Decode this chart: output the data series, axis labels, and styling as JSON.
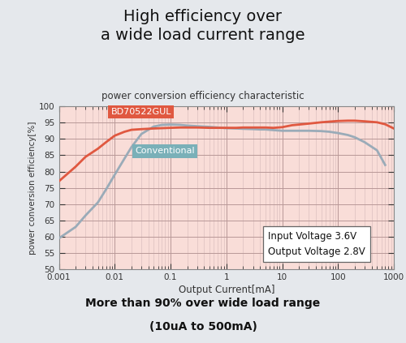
{
  "title": "High efficiency over\na wide load current range",
  "subtitle": "power conversion efficiency characteristic",
  "xlabel": "Output Current[mA]",
  "ylabel": "power conversion efficiency[%]",
  "footer_line1": "More than 90% over wide load range",
  "footer_line2": "(10uA to 500mA)",
  "xlim": [
    0.001,
    1000
  ],
  "ylim": [
    50,
    100
  ],
  "yticks": [
    50,
    55,
    60,
    65,
    70,
    75,
    80,
    85,
    90,
    95,
    100
  ],
  "background_color": "#e5e8ec",
  "plot_bg_color": "#f9ddd8",
  "grid_major_color": "#b89898",
  "grid_minor_color": "#d4b8b8",
  "bd_color": "#e05840",
  "conv_color": "#9aabb8",
  "bd_label": "BD70522GUL",
  "bd_label_bg": "#e05840",
  "bd_label_fg": "#ffffff",
  "conv_label": "Conventional",
  "conv_label_bg": "#7ab0b8",
  "conv_label_fg": "#ffffff",
  "annotation_text": "Input Voltage 3.6V\nOutput Voltage 2.8V",
  "bd_x": [
    0.001,
    0.002,
    0.003,
    0.005,
    0.007,
    0.01,
    0.015,
    0.02,
    0.03,
    0.05,
    0.07,
    0.1,
    0.15,
    0.2,
    0.3,
    0.5,
    0.7,
    1.0,
    1.5,
    2.0,
    3.0,
    4.0,
    5.0,
    7.0,
    10.0,
    15.0,
    20.0,
    30.0,
    50.0,
    70.0,
    100.0,
    150.0,
    200.0,
    300.0,
    500.0,
    700.0,
    1000.0
  ],
  "bd_y": [
    77.0,
    81.5,
    84.5,
    87.0,
    89.0,
    91.0,
    92.2,
    92.8,
    93.0,
    93.2,
    93.3,
    93.4,
    93.5,
    93.5,
    93.5,
    93.4,
    93.4,
    93.4,
    93.4,
    93.5,
    93.5,
    93.5,
    93.5,
    93.4,
    93.6,
    94.2,
    94.4,
    94.7,
    95.1,
    95.3,
    95.5,
    95.6,
    95.6,
    95.4,
    95.1,
    94.5,
    93.2
  ],
  "conv_x": [
    0.001,
    0.002,
    0.003,
    0.005,
    0.007,
    0.01,
    0.015,
    0.02,
    0.03,
    0.05,
    0.07,
    0.1,
    0.15,
    0.2,
    0.3,
    0.5,
    0.7,
    1.0,
    1.5,
    2.0,
    3.0,
    4.0,
    5.0,
    7.0,
    10.0,
    15.0,
    20.0,
    30.0,
    50.0,
    70.0,
    100.0,
    150.0,
    200.0,
    300.0,
    500.0,
    700.0
  ],
  "conv_y": [
    59.5,
    63.0,
    66.5,
    70.5,
    74.5,
    79.0,
    84.0,
    87.5,
    91.5,
    93.8,
    94.3,
    94.4,
    94.3,
    94.1,
    93.9,
    93.7,
    93.5,
    93.3,
    93.2,
    93.1,
    93.0,
    92.9,
    92.9,
    92.7,
    92.5,
    92.5,
    92.5,
    92.5,
    92.4,
    92.2,
    91.8,
    91.2,
    90.5,
    89.0,
    86.5,
    82.0
  ]
}
